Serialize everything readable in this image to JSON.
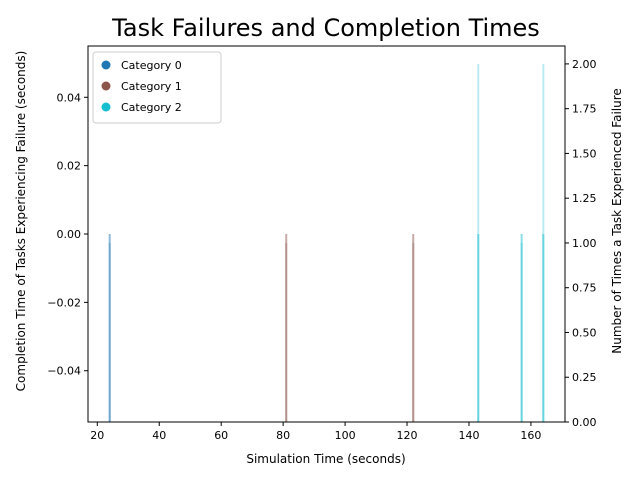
{
  "chart_data": {
    "type": "bar",
    "title": "Task Failures and Completion Times",
    "xlabel": "Simulation Time (seconds)",
    "ylabel_left": "Completion Time of Tasks Experiencing Failure (seconds)",
    "ylabel_right": "Number of Times a Task Experienced Failure",
    "xlim": [
      17,
      171
    ],
    "ylim_left": [
      -0.055,
      0.055
    ],
    "ylim_right": [
      0,
      2.1
    ],
    "x_ticks": [
      20,
      40,
      60,
      80,
      100,
      120,
      140,
      160
    ],
    "y_left_ticks": [
      -0.04,
      -0.02,
      0.0,
      0.02,
      0.04
    ],
    "y_left_tick_labels": [
      "−0.04",
      "−0.02",
      "0.00",
      "0.02",
      "0.04"
    ],
    "y_right_ticks": [
      0.0,
      0.25,
      0.5,
      0.75,
      1.0,
      1.25,
      1.5,
      1.75,
      2.0
    ],
    "y_right_tick_labels": [
      "0.00",
      "0.25",
      "0.50",
      "0.75",
      "1.00",
      "1.25",
      "1.50",
      "1.75",
      "2.00"
    ],
    "legend": {
      "position": "upper-left",
      "entries": [
        {
          "label": "Category 0",
          "color": "#1f77b4"
        },
        {
          "label": "Category 1",
          "color": "#8c564b"
        },
        {
          "label": "Category 2",
          "color": "#17becf"
        }
      ]
    },
    "failure_bars": [
      {
        "x": 24,
        "count": 1,
        "category": 0
      },
      {
        "x": 81,
        "count": 1,
        "category": 1
      },
      {
        "x": 122,
        "count": 1,
        "category": 1
      },
      {
        "x": 143,
        "count": 2,
        "category": 2
      },
      {
        "x": 157,
        "count": 1,
        "category": 2
      },
      {
        "x": 164,
        "count": 2,
        "category": 2
      }
    ],
    "completion_points": [
      {
        "x": 24,
        "y": 0,
        "category": 0
      },
      {
        "x": 81,
        "y": 0,
        "category": 1
      },
      {
        "x": 122,
        "y": 0,
        "category": 1
      },
      {
        "x": 143,
        "y": 0,
        "category": 2
      },
      {
        "x": 157,
        "y": 0,
        "category": 2
      },
      {
        "x": 164,
        "y": 0,
        "category": 2
      }
    ]
  }
}
